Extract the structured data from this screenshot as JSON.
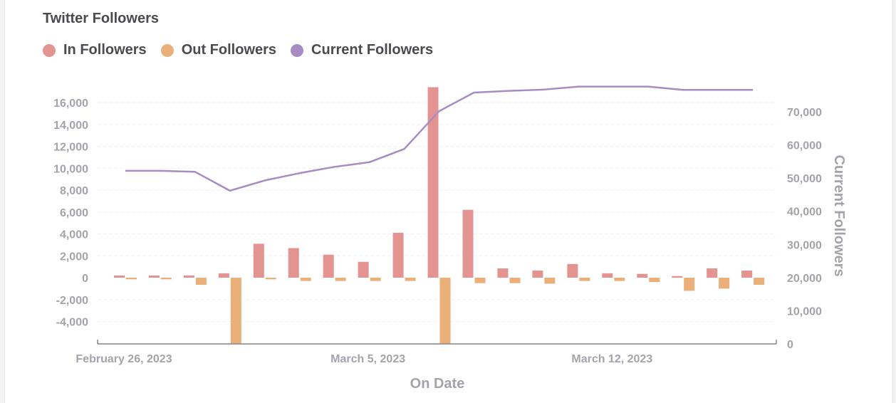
{
  "chart_data": {
    "type": "bar",
    "title": "Twitter Followers",
    "xlabel": "On Date",
    "ylabel": "",
    "y2label": "Current Followers",
    "categories": [
      "2023-02-26",
      "2023-02-27",
      "2023-02-28",
      "2023-03-01",
      "2023-03-02",
      "2023-03-03",
      "2023-03-04",
      "2023-03-05",
      "2023-03-06",
      "2023-03-07",
      "2023-03-08",
      "2023-03-09",
      "2023-03-10",
      "2023-03-11",
      "2023-03-12",
      "2023-03-13",
      "2023-03-14",
      "2023-03-15",
      "2023-03-16",
      "2023-03-17"
    ],
    "x_tick_labels": [
      {
        "category": "2023-02-26",
        "label": "February 26, 2023"
      },
      {
        "category": "2023-03-05",
        "label": "March 5, 2023"
      },
      {
        "category": "2023-03-12",
        "label": "March 12, 2023"
      }
    ],
    "ylim": [
      -6000,
      17500
    ],
    "y_ticks": [
      -4000,
      -2000,
      0,
      2000,
      4000,
      6000,
      8000,
      10000,
      12000,
      14000,
      16000
    ],
    "y2lim": [
      0,
      80000
    ],
    "y2_ticks": [
      0,
      10000,
      20000,
      30000,
      40000,
      50000,
      60000,
      70000
    ],
    "grid": true,
    "legend_position": "top-left",
    "series": [
      {
        "name": "In Followers",
        "type": "bar",
        "axis": "left",
        "color": "#e49490",
        "values": [
          200,
          200,
          200,
          400,
          3100,
          2700,
          2100,
          1450,
          4100,
          17400,
          6200,
          850,
          650,
          1250,
          400,
          350,
          150,
          850,
          650,
          0
        ]
      },
      {
        "name": "Out Followers",
        "type": "bar",
        "axis": "left",
        "color": "#ebb07a",
        "values": [
          -150,
          -150,
          -650,
          -6000,
          -150,
          -300,
          -300,
          -300,
          -300,
          -6000,
          -500,
          -500,
          -550,
          -300,
          -300,
          -400,
          -1200,
          -1000,
          -650,
          0
        ]
      },
      {
        "name": "Current Followers",
        "type": "line",
        "axis": "right",
        "color": "#a78cc4",
        "values": [
          52200,
          52200,
          51900,
          46200,
          49300,
          51500,
          53400,
          54800,
          58800,
          70200,
          75800,
          76300,
          76700,
          77600,
          77600,
          77600,
          76600,
          76600,
          76600,
          null
        ]
      }
    ]
  }
}
